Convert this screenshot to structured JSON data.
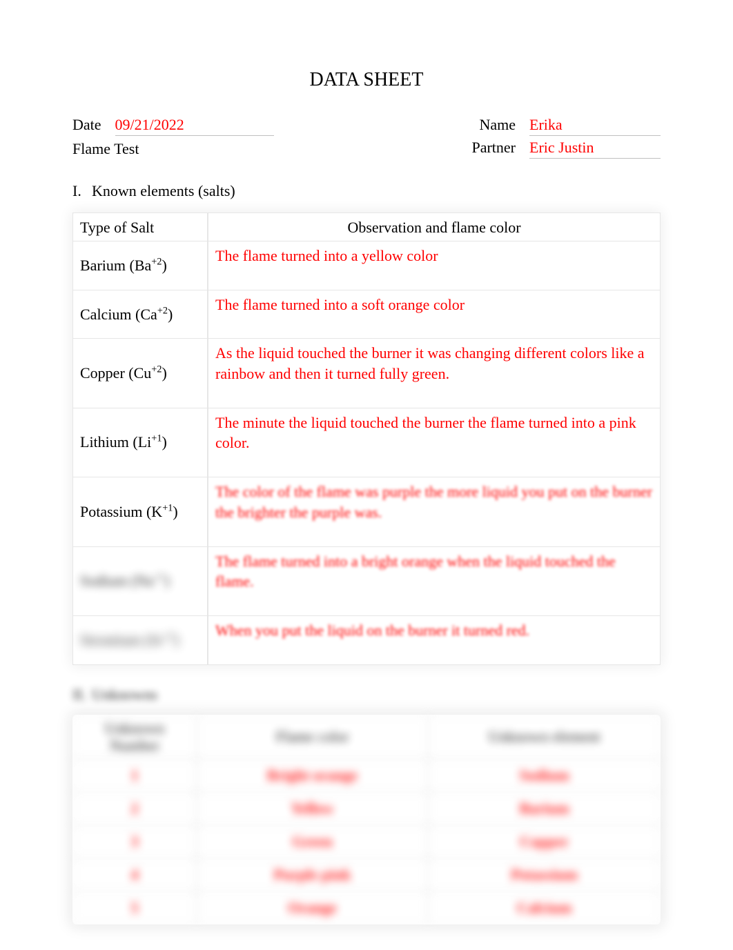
{
  "title": "DATA SHEET",
  "header": {
    "date_label": "Date",
    "date_value": "09/21/2022",
    "name_label": "Name",
    "name_value": "Erika",
    "subtitle": "Flame Test",
    "partner_label": "Partner",
    "partner_value": "Eric Justin"
  },
  "section1": {
    "num": "I.",
    "heading": "Known elements (salts)"
  },
  "table1": {
    "columns": [
      "Type of Salt",
      "Observation and flame color"
    ],
    "rows": [
      {
        "salt_html": "Barium (Ba<sup>+2</sup>)",
        "obs": "The flame turned into a yellow color",
        "obs_blur": ""
      },
      {
        "salt_html": "Calcium (Ca<sup>+2</sup>)",
        "obs": "The flame turned into a soft orange color",
        "obs_blur": ""
      },
      {
        "salt_html": "Copper (Cu<sup>+2</sup>)",
        "obs": "As the liquid touched the burner it was changing different colors like a rainbow and then it turned fully green.",
        "obs_blur": ""
      },
      {
        "salt_html": "Lithium (Li<sup>+1</sup>)",
        "obs": "The minute the liquid touched the burner the flame turned into a pink color.",
        "obs_blur": ""
      },
      {
        "salt_html": "Potassium (K<sup>+1</sup>)",
        "obs": "The color of the flame was purple the more liquid you put on the burner the brighter the purple was.",
        "obs_blur": "obs-blur1"
      },
      {
        "salt_html": "Sodium (Na<sup>+1</sup>)",
        "salt_blur": "blur1",
        "obs": "The flame turned into a bright orange when the liquid touched the flame.",
        "obs_blur": "obs-blur2"
      },
      {
        "salt_html": "Strontium (Sr<sup>+2</sup>)",
        "salt_blur": "blur2",
        "obs": "When you put the liquid on the burner it turned red.",
        "obs_blur": "obs-blur2"
      }
    ]
  },
  "section2": {
    "num": "II.",
    "heading": "Unknowns"
  },
  "table2": {
    "columns": [
      "Unknown Number",
      "Flame color",
      "Unknown element"
    ],
    "rows": [
      {
        "n": "1",
        "color": "Bright orange",
        "elem": "Sodium"
      },
      {
        "n": "2",
        "color": "Yellow",
        "elem": "Barium"
      },
      {
        "n": "3",
        "color": "Green",
        "elem": "Copper"
      },
      {
        "n": "4",
        "color": "Purple pink",
        "elem": "Potassium"
      },
      {
        "n": "5",
        "color": "Orange",
        "elem": "Calcium"
      }
    ]
  },
  "colors": {
    "red_text": "#ff0000",
    "black_text": "#000000",
    "border": "#e6e6e6",
    "underline": "#bfbfbf",
    "background": "#ffffff"
  }
}
